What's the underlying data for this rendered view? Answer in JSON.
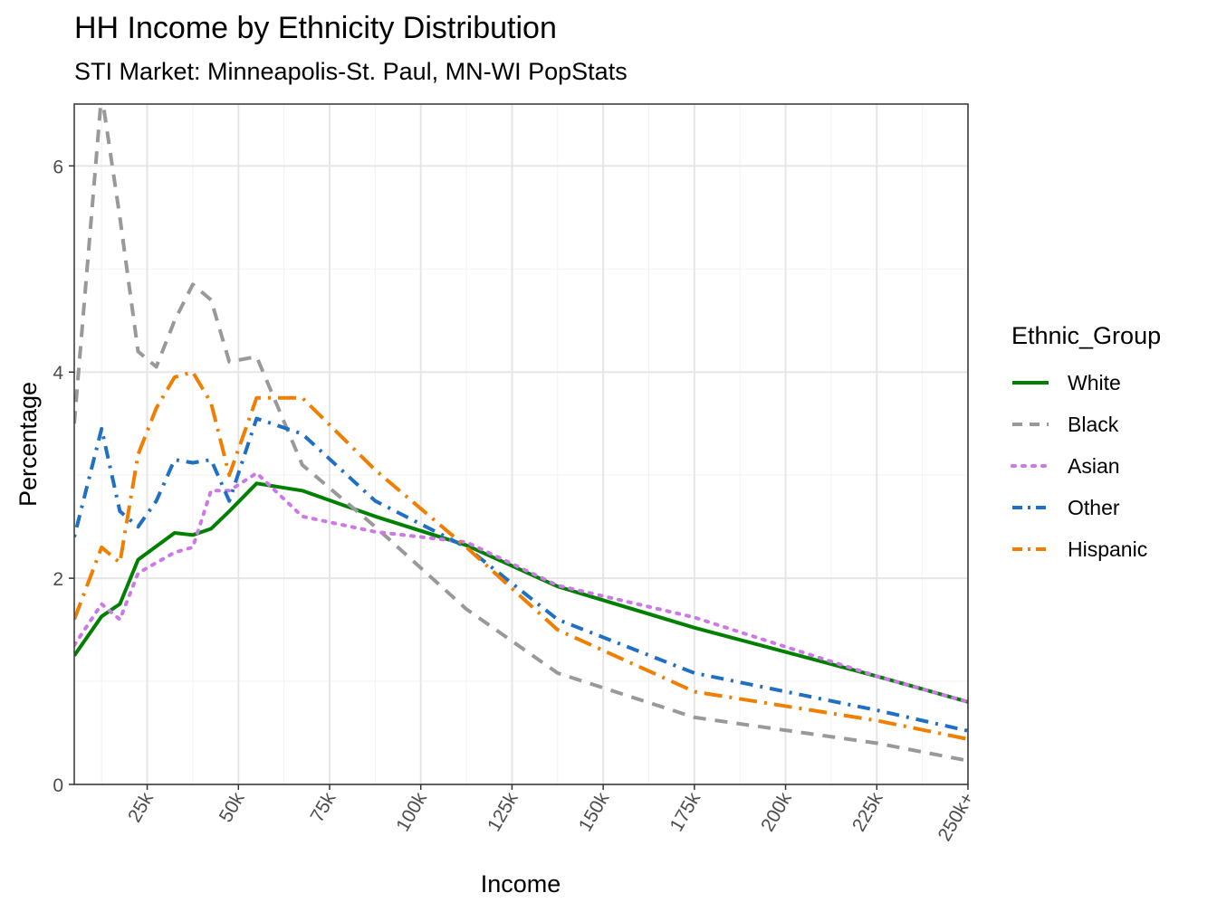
{
  "chart_data": {
    "type": "line",
    "title": "HH Income by Ethnicity Distribution",
    "subtitle": "STI Market: Minneapolis-St. Paul, MN-WI PopStats",
    "xlabel": "Income",
    "ylabel": "Percentage",
    "xlim": [
      5,
      250
    ],
    "ylim": [
      0,
      6.6
    ],
    "x_ticks": [
      {
        "value": 25,
        "label": "25k"
      },
      {
        "value": 50,
        "label": "50k"
      },
      {
        "value": 75,
        "label": "75k"
      },
      {
        "value": 100,
        "label": "100k"
      },
      {
        "value": 125,
        "label": "125k"
      },
      {
        "value": 150,
        "label": "150k"
      },
      {
        "value": 175,
        "label": "175k"
      },
      {
        "value": 200,
        "label": "200k"
      },
      {
        "value": 225,
        "label": "225k"
      },
      {
        "value": 250,
        "label": "250k+"
      }
    ],
    "y_ticks": [
      {
        "value": 0,
        "label": "0"
      },
      {
        "value": 2,
        "label": "2"
      },
      {
        "value": 4,
        "label": "4"
      },
      {
        "value": 6,
        "label": "6"
      }
    ],
    "grid": true,
    "legend": {
      "title": "Ethnic_Group",
      "position": "right"
    },
    "series": [
      {
        "name": "White",
        "color": "#008000",
        "dash": "solid",
        "x": [
          5,
          12.5,
          17.5,
          22.5,
          32.5,
          37.5,
          42.5,
          47.5,
          55,
          67.5,
          87.5,
          112.5,
          137.5,
          175,
          225,
          250
        ],
        "y": [
          1.25,
          1.63,
          1.75,
          2.18,
          2.44,
          2.42,
          2.48,
          2.65,
          2.92,
          2.85,
          2.6,
          2.32,
          1.92,
          1.52,
          1.05,
          0.8
        ]
      },
      {
        "name": "Black",
        "color": "#999999",
        "dash": "dashed",
        "x": [
          5,
          12.5,
          17.5,
          22.5,
          27.5,
          32.5,
          37.5,
          42.5,
          47.5,
          55,
          67.5,
          87.5,
          112.5,
          137.5,
          175,
          225,
          250
        ],
        "y": [
          3.5,
          6.7,
          5.5,
          4.2,
          4.05,
          4.5,
          4.85,
          4.7,
          4.1,
          4.15,
          3.1,
          2.5,
          1.7,
          1.08,
          0.65,
          0.4,
          0.23
        ]
      },
      {
        "name": "Asian",
        "color": "#cc79e6",
        "dash": "dotted",
        "x": [
          5,
          12.5,
          17.5,
          22.5,
          27.5,
          32.5,
          37.5,
          42.5,
          47.5,
          55,
          67.5,
          87.5,
          112.5,
          137.5,
          175,
          225,
          250
        ],
        "y": [
          1.35,
          1.75,
          1.6,
          2.05,
          2.15,
          2.25,
          2.3,
          2.85,
          2.85,
          3.02,
          2.6,
          2.45,
          2.35,
          1.93,
          1.62,
          1.05,
          0.8
        ]
      },
      {
        "name": "Other",
        "color": "#1f6fc5",
        "dash": "dotdash",
        "x": [
          5,
          12.5,
          17.5,
          22.5,
          27.5,
          32.5,
          37.5,
          42.5,
          47.5,
          55,
          67.5,
          87.5,
          112.5,
          137.5,
          175,
          225,
          250
        ],
        "y": [
          2.4,
          3.45,
          2.65,
          2.5,
          2.75,
          3.15,
          3.12,
          3.15,
          2.75,
          3.55,
          3.4,
          2.75,
          2.3,
          1.6,
          1.08,
          0.72,
          0.52
        ]
      },
      {
        "name": "Hispanic",
        "color": "#f07f00",
        "dash": "longdash-dot",
        "x": [
          5,
          12.5,
          17.5,
          22.5,
          27.5,
          32.5,
          37.5,
          42.5,
          47.5,
          55,
          67.5,
          87.5,
          112.5,
          137.5,
          175,
          225,
          250
        ],
        "y": [
          1.6,
          2.3,
          2.15,
          3.2,
          3.65,
          3.95,
          4.0,
          3.7,
          3.0,
          3.75,
          3.75,
          3.05,
          2.3,
          1.5,
          0.9,
          0.62,
          0.44
        ]
      }
    ]
  }
}
